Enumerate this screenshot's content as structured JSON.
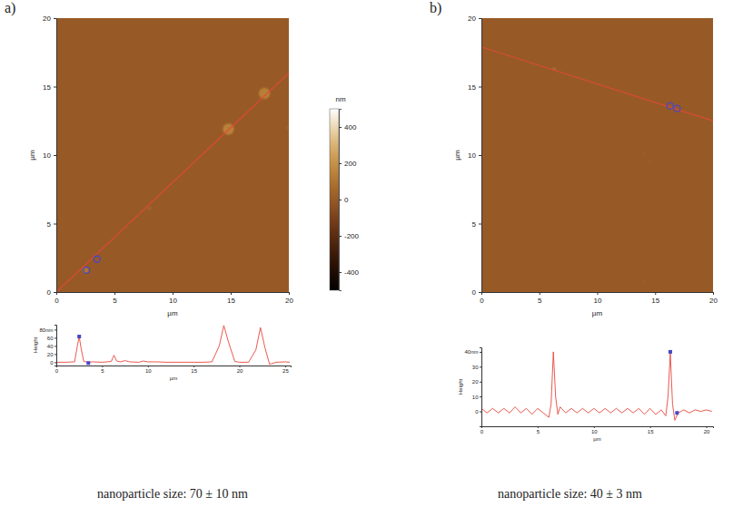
{
  "chart_data": [
    {
      "type": "image",
      "panel_label": "a)",
      "x_label": "µm",
      "y_label": "µm",
      "xlim": [
        0,
        20
      ],
      "ylim": [
        0,
        20
      ],
      "xticks": [
        0,
        5,
        10,
        15,
        20
      ],
      "yticks": [
        0,
        5,
        10,
        15,
        20
      ],
      "background": 0,
      "particles": {
        "x": [
          14.8,
          17.9,
          2.5,
          8,
          19.9
        ],
        "y": [
          11.9,
          14.5,
          1.6,
          6.1,
          12
        ],
        "height": [
          90,
          85,
          63,
          17,
          20
        ],
        "diameter": [
          0.9,
          0.9,
          0.5,
          0.4,
          0.3
        ]
      },
      "line": {
        "x": [
          0,
          20
        ],
        "y": [
          0,
          16
        ],
        "color": "#e8463c"
      },
      "markers": {
        "x": [
          2.6,
          3.5
        ],
        "y": [
          1.6,
          2.4
        ],
        "color": "#4646c8"
      },
      "colorbar": {
        "label": "nm",
        "range": [
          -500,
          500
        ],
        "ticks": [
          400,
          200,
          0,
          -200,
          -400
        ]
      },
      "caption": "nanoparticle size: 70 ± 10 nm"
    },
    {
      "type": "line",
      "x_label": "µm",
      "y_label": "Height",
      "x": [
        0,
        1,
        2,
        2.3,
        2.5,
        2.7,
        3,
        3.5,
        4,
        5,
        6,
        6.3,
        6.6,
        7,
        7.5,
        8,
        9,
        9.5,
        10,
        11,
        12,
        13,
        14,
        15,
        16,
        17,
        17.8,
        18.3,
        18.8,
        19.5,
        20,
        21,
        21.8,
        22.3,
        22.8,
        23.3,
        24,
        25,
        25.5
      ],
      "values": [
        0,
        0,
        1,
        40,
        63,
        35,
        2,
        0,
        1,
        0,
        2,
        17,
        3,
        1,
        4,
        1,
        0,
        3,
        1,
        1,
        0,
        0,
        0,
        0,
        0,
        1,
        40,
        90,
        50,
        2,
        0,
        0,
        30,
        85,
        35,
        -5,
        0,
        1,
        0
      ],
      "xlim": [
        0,
        25.6
      ],
      "ylim": [
        -8,
        92
      ],
      "xticks": [
        0,
        5,
        10,
        15,
        20,
        25
      ],
      "yticks": [
        0,
        20,
        40,
        60,
        {
          "value": 80,
          "label": "80nm"
        }
      ],
      "color": "#e8463c",
      "markers": {
        "x": [
          2.5,
          3.5
        ],
        "y": [
          63,
          -2
        ],
        "color": "#4646c8"
      }
    },
    {
      "type": "image",
      "panel_label": "b)",
      "x_label": "µm",
      "y_label": "µm",
      "xlim": [
        0,
        20
      ],
      "ylim": [
        0,
        20
      ],
      "xticks": [
        0,
        5,
        10,
        15,
        20
      ],
      "yticks": [
        0,
        5,
        10,
        15,
        20
      ],
      "background": 0,
      "particles": {
        "x": [
          6.3,
          16.6,
          14,
          14.5,
          14
        ],
        "y": [
          16.3,
          13.5,
          10.1,
          9.5,
          0.8
        ],
        "height": [
          40,
          39,
          10,
          10,
          10
        ],
        "diameter": [
          0.3,
          0.3,
          0.3,
          0.2,
          0.3
        ]
      },
      "line": {
        "x": [
          0,
          20
        ],
        "y": [
          17.9,
          12.5
        ],
        "color": "#e8463c"
      },
      "markers": {
        "x": [
          16.3,
          16.9
        ],
        "y": [
          13.6,
          13.4
        ],
        "color": "#4646c8"
      },
      "caption": "nanoparticle size: 40 ± 3 nm"
    },
    {
      "type": "line",
      "x_label": "µm",
      "y_label": "Height",
      "x": [
        0,
        0.5,
        1,
        1.5,
        2,
        2.5,
        3,
        3.5,
        4,
        4.5,
        5,
        5.5,
        6,
        6.2,
        6.4,
        6.6,
        6.8,
        7,
        7.5,
        8,
        8.5,
        9,
        9.5,
        10,
        10.5,
        11,
        11.5,
        12,
        12.5,
        13,
        13.5,
        14,
        14.5,
        15,
        15.5,
        16,
        16.4,
        16.6,
        16.8,
        17,
        17.2,
        17.5,
        18,
        18.5,
        19,
        19.5,
        20,
        20.5
      ],
      "values": [
        2,
        -1,
        2,
        -1,
        2,
        -1,
        3,
        -1,
        2,
        -2,
        2,
        -1,
        -4,
        5,
        40,
        10,
        -2,
        3,
        -1,
        2,
        -1,
        2,
        -1,
        2,
        -1,
        2,
        -1,
        2,
        -1,
        2,
        -1,
        2,
        -2,
        2,
        -2,
        1,
        -3,
        10,
        39,
        5,
        -6,
        -1,
        1,
        -1,
        1,
        0,
        1,
        0
      ],
      "xlim": [
        0,
        20.6
      ],
      "ylim": [
        -10,
        43
      ],
      "xticks": [
        0,
        5,
        10,
        15,
        20
      ],
      "yticks": [
        0,
        10,
        20,
        30,
        {
          "value": 40,
          "label": "40nm"
        }
      ],
      "color": "#e8463c",
      "markers": {
        "x": [
          16.8,
          17.4
        ],
        "y": [
          40,
          -1
        ],
        "color": "#4646c8"
      }
    }
  ]
}
